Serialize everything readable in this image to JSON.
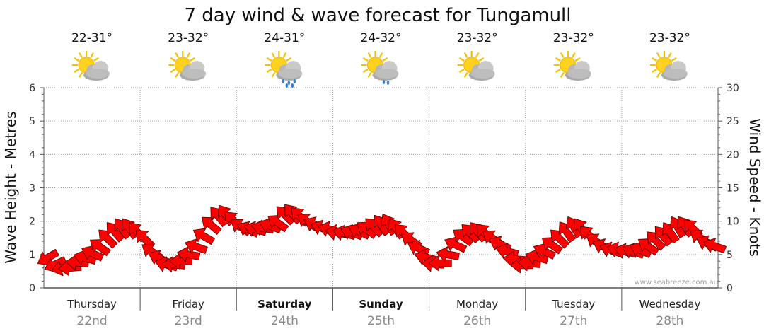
{
  "chart_data": {
    "type": "line",
    "title": "7 day wind & wave forecast for Tungamull",
    "ylabel_left": "Wave Height - Metres",
    "ylabel_right": "Wind Speed - Knots",
    "ylim_left": [
      0,
      6
    ],
    "ylim_right": [
      0,
      30
    ],
    "yticks_left": [
      "0",
      "1",
      "2",
      "3",
      "4",
      "5",
      "6"
    ],
    "yticks_right": [
      "0",
      "5",
      "10",
      "15",
      "20",
      "25",
      "30"
    ],
    "grid": true,
    "days": [
      {
        "name": "Thursday",
        "date": "22nd",
        "temp": "22-31°",
        "weather": "partly-cloudy",
        "bold": false
      },
      {
        "name": "Friday",
        "date": "23rd",
        "temp": "23-32°",
        "weather": "partly-cloudy",
        "bold": false
      },
      {
        "name": "Saturday",
        "date": "24th",
        "temp": "24-31°",
        "weather": "rain",
        "bold": true
      },
      {
        "name": "Sunday",
        "date": "25th",
        "temp": "24-32°",
        "weather": "showers",
        "bold": true
      },
      {
        "name": "Monday",
        "date": "26th",
        "temp": "23-32°",
        "weather": "partly-cloudy",
        "bold": false
      },
      {
        "name": "Tuesday",
        "date": "27th",
        "temp": "23-32°",
        "weather": "partly-cloudy",
        "bold": false
      },
      {
        "name": "Wednesday",
        "date": "28th",
        "temp": "23-32°",
        "weather": "partly-cloudy",
        "bold": false
      }
    ],
    "series": [
      {
        "kind": "wind-arrows",
        "color": "#ff0000",
        "units": "knots",
        "values": [
          4.5,
          3.5,
          3,
          3,
          3.8,
          4.5,
          5.2,
          6.2,
          7.5,
          8.5,
          9,
          9,
          8.5,
          7.5,
          5.5,
          4.5,
          3.5,
          3.5,
          4,
          5,
          6.2,
          7.8,
          9.5,
          10.8,
          11,
          10.2,
          9.2,
          8.8,
          8.8,
          9,
          9.3,
          9.8,
          11,
          11.2,
          10.8,
          10,
          9.5,
          9,
          8.8,
          8.3,
          8.2,
          8.3,
          8.5,
          8.8,
          9.2,
          9.5,
          9.6,
          9,
          8.3,
          7.2,
          6,
          4.6,
          3.6,
          3.7,
          5,
          6.5,
          7.7,
          8.3,
          8.5,
          8.3,
          7.5,
          6.6,
          5.5,
          4.3,
          3.4,
          3.7,
          4.6,
          5.5,
          6.5,
          7.5,
          8.5,
          9.2,
          9,
          8,
          7,
          6.2,
          5.7,
          5.7,
          5.5,
          5.5,
          5.7,
          6.3,
          7.2,
          7.9,
          8.4,
          9.2,
          9.3,
          9,
          7.6,
          6.7,
          6.3
        ],
        "directions": [
          150,
          155,
          165,
          175,
          185,
          195,
          205,
          215,
          225,
          230,
          235,
          235,
          230,
          225,
          215,
          205,
          195,
          185,
          180,
          190,
          200,
          210,
          220,
          230,
          235,
          225,
          215,
          205,
          195,
          190,
          200,
          215,
          225,
          230,
          225,
          215,
          205,
          200,
          195,
          190,
          195,
          200,
          205,
          215,
          225,
          235,
          240,
          235,
          225,
          215,
          205,
          195,
          185,
          180,
          190,
          205,
          215,
          225,
          230,
          225,
          215,
          205,
          195,
          185,
          180,
          185,
          195,
          205,
          215,
          225,
          235,
          240,
          235,
          225,
          215,
          205,
          200,
          195,
          195,
          200,
          205,
          215,
          225,
          230,
          235,
          240,
          235,
          225,
          215,
          205,
          200
        ]
      }
    ],
    "watermark": "www.seabreeze.com.au"
  }
}
